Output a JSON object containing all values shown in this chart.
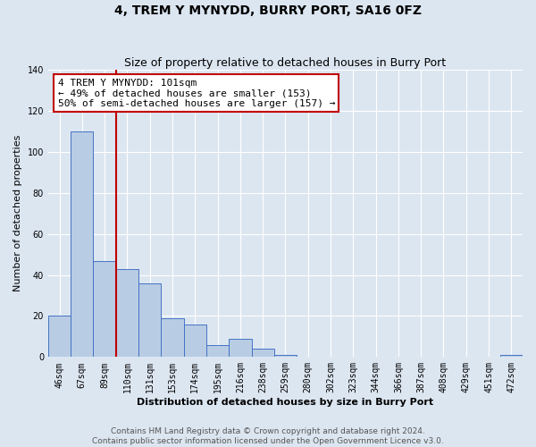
{
  "title": "4, TREM Y MYNYDD, BURRY PORT, SA16 0FZ",
  "subtitle": "Size of property relative to detached houses in Burry Port",
  "xlabel": "Distribution of detached houses by size in Burry Port",
  "ylabel": "Number of detached properties",
  "categories": [
    "46sqm",
    "67sqm",
    "89sqm",
    "110sqm",
    "131sqm",
    "153sqm",
    "174sqm",
    "195sqm",
    "216sqm",
    "238sqm",
    "259sqm",
    "280sqm",
    "302sqm",
    "323sqm",
    "344sqm",
    "366sqm",
    "387sqm",
    "408sqm",
    "429sqm",
    "451sqm",
    "472sqm"
  ],
  "values": [
    20,
    110,
    47,
    43,
    36,
    19,
    16,
    6,
    9,
    4,
    1,
    0,
    0,
    0,
    0,
    0,
    0,
    0,
    0,
    0,
    1
  ],
  "bar_color": "#b8cce4",
  "bar_edge_color": "#4472c4",
  "background_color": "#dce6f1",
  "plot_bg_color": "#dce6f1",
  "ylim": [
    0,
    140
  ],
  "yticks": [
    0,
    20,
    40,
    60,
    80,
    100,
    120,
    140
  ],
  "vline_x": 2.5,
  "vline_color": "#c00000",
  "annotation_title": "4 TREM Y MYNYDD: 101sqm",
  "annotation_line1": "← 49% of detached houses are smaller (153)",
  "annotation_line2": "50% of semi-detached houses are larger (157) →",
  "annotation_box_color": "#ffffff",
  "annotation_box_edge_color": "#c00000",
  "footer_line1": "Contains HM Land Registry data © Crown copyright and database right 2024.",
  "footer_line2": "Contains public sector information licensed under the Open Government Licence v3.0.",
  "title_fontsize": 10,
  "subtitle_fontsize": 9,
  "axis_label_fontsize": 8,
  "tick_fontsize": 7,
  "annotation_fontsize": 8,
  "footer_fontsize": 6.5
}
